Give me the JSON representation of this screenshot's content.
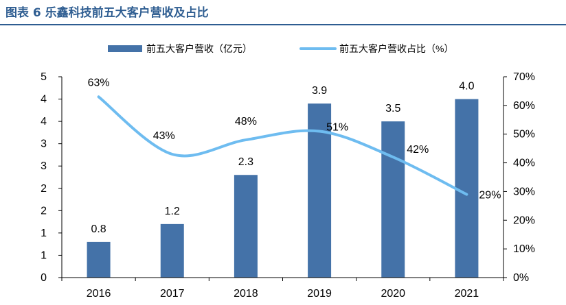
{
  "figure": {
    "title": "图表 6 乐鑫科技前五大客户营收及占比"
  },
  "colors": {
    "title": "#2e5d91",
    "bar": "#4472a8",
    "line": "#6ebcf0"
  },
  "chart_data": {
    "type": "bar+line",
    "categories": [
      "2016",
      "2017",
      "2018",
      "2019",
      "2020",
      "2021"
    ],
    "series": [
      {
        "name": "前五大客户营收（亿元）",
        "type": "bar",
        "axis": "left",
        "values": [
          0.8,
          1.2,
          2.3,
          3.9,
          3.5,
          4.0
        ],
        "labels": [
          "0.8",
          "1.2",
          "2.3",
          "3.9",
          "3.5",
          "4.0"
        ]
      },
      {
        "name": "前五大客户营收占比（%）",
        "type": "line",
        "axis": "right",
        "values": [
          63,
          43,
          48,
          51,
          42,
          29
        ],
        "labels": [
          "63%",
          "43%",
          "48%",
          "51%",
          "42%",
          "29%"
        ]
      }
    ],
    "left_axis": {
      "ylim": [
        0,
        4.5
      ],
      "tick_values": [
        0,
        0.5,
        1,
        1.5,
        2,
        2.5,
        3,
        3.5,
        4,
        4.5
      ],
      "tick_labels": [
        "0",
        "1",
        "1",
        "2",
        "2",
        "3",
        "3",
        "4",
        "4",
        "5"
      ]
    },
    "right_axis": {
      "ylim": [
        0,
        70
      ],
      "tick_values": [
        0,
        10,
        20,
        30,
        40,
        50,
        60,
        70
      ],
      "tick_labels": [
        "0%",
        "10%",
        "20%",
        "30%",
        "40%",
        "50%",
        "60%",
        "70%"
      ]
    },
    "grid": false,
    "legend_position": "top"
  }
}
